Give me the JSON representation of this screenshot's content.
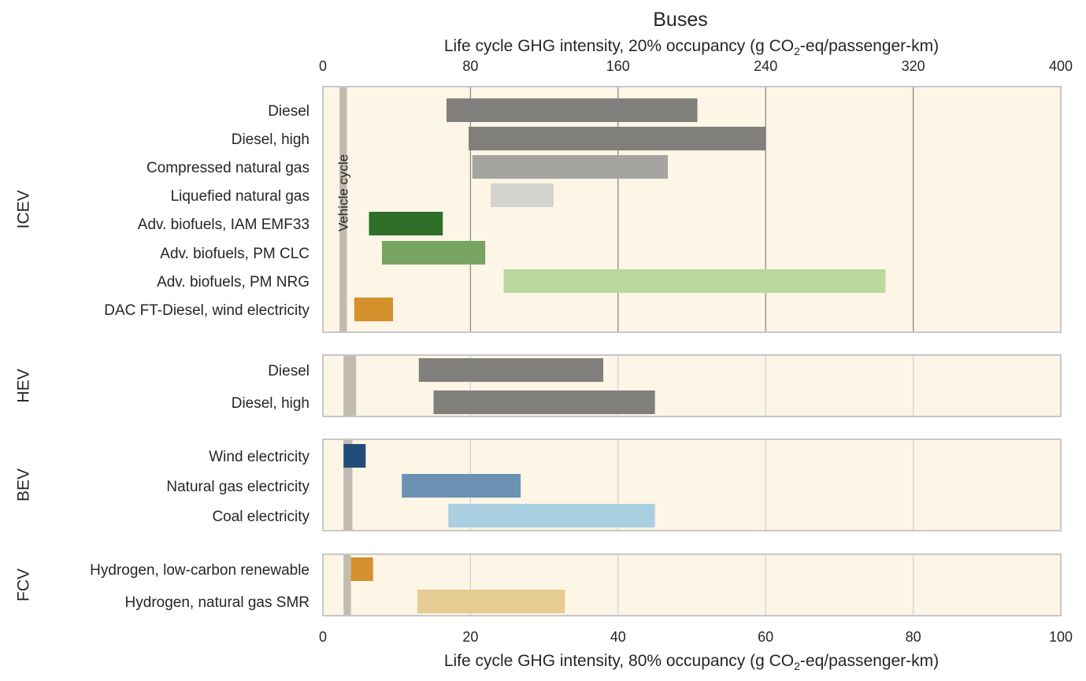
{
  "chart_data": {
    "type": "bar",
    "orientation": "horizontal-range",
    "title": "Buses",
    "top_axis": {
      "label_prefix": "Life cycle GHG intensity, 20% occupancy (g CO",
      "label_sub": "2",
      "label_suffix": "-eq/passenger-km)",
      "range": [
        0,
        400
      ],
      "ticks": [
        "0",
        "80",
        "160",
        "240",
        "320",
        "400"
      ],
      "tick_values": [
        0,
        80,
        160,
        240,
        320,
        400
      ]
    },
    "bottom_axis": {
      "label_prefix": "Life cycle GHG intensity, 80% occupancy (g CO",
      "label_sub": "2",
      "label_suffix": "-eq/passenger-km)",
      "range": [
        0,
        100
      ],
      "ticks": [
        "0",
        "20",
        "40",
        "60",
        "80",
        "100"
      ],
      "tick_values": [
        0,
        20,
        40,
        60,
        80,
        100
      ]
    },
    "grid": true,
    "vehicle_cycle_label": "Vehicle cycle",
    "groups": [
      {
        "name": "ICEV",
        "axis": "top",
        "vehicle_cycle": [
          9,
          13
        ],
        "bars": [
          {
            "label": "Diesel",
            "start": 67,
            "end": 203,
            "color": "#807f7b"
          },
          {
            "label": "Diesel, high",
            "start": 79,
            "end": 240,
            "color": "#807f7b"
          },
          {
            "label": "Compressed natural gas",
            "start": 81,
            "end": 187,
            "color": "#a5a4a0"
          },
          {
            "label": "Liquefied natural gas",
            "start": 91,
            "end": 125,
            "color": "#d3d2ce"
          },
          {
            "label": "Adv. biofuels, IAM EMF33",
            "start": 25,
            "end": 65,
            "color": "#2f6f2a"
          },
          {
            "label": "Adv. biofuels, PM CLC",
            "start": 32,
            "end": 88,
            "color": "#76a463"
          },
          {
            "label": "Adv. biofuels, PM NRG",
            "start": 98,
            "end": 305,
            "color": "#bad89f"
          },
          {
            "label": "DAC FT-Diesel, wind electricity",
            "start": 17,
            "end": 38,
            "color": "#d4912c"
          }
        ]
      },
      {
        "name": "HEV",
        "axis": "bottom",
        "vehicle_cycle": [
          2.8,
          4.5
        ],
        "bars": [
          {
            "label": "Diesel",
            "start": 13,
            "end": 38,
            "color": "#807f7b"
          },
          {
            "label": "Diesel, high",
            "start": 15,
            "end": 45,
            "color": "#807f7b"
          }
        ]
      },
      {
        "name": "BEV",
        "axis": "bottom",
        "vehicle_cycle": [
          2.8,
          4.0
        ],
        "bars": [
          {
            "label": "Wind electricity",
            "start": 2.8,
            "end": 5.8,
            "color": "#244c7a"
          },
          {
            "label": "Natural gas electricity",
            "start": 10.7,
            "end": 26.8,
            "color": "#6b92b3"
          },
          {
            "label": "Coal electricity",
            "start": 17,
            "end": 45,
            "color": "#a9cfe1"
          }
        ]
      },
      {
        "name": "FCV",
        "axis": "bottom",
        "vehicle_cycle": [
          2.8,
          3.8
        ],
        "bars": [
          {
            "label": "Hydrogen, low-carbon renewable",
            "start": 3.8,
            "end": 6.8,
            "color": "#d4912c"
          },
          {
            "label": "Hydrogen, natural gas SMR",
            "start": 12.8,
            "end": 32.8,
            "color": "#e5cc92"
          }
        ]
      }
    ]
  },
  "colors": {
    "panel_bg": "#fdf5e5",
    "panel_border": "#c8c8c8",
    "vehicle_cycle": "#c1bbb1"
  }
}
